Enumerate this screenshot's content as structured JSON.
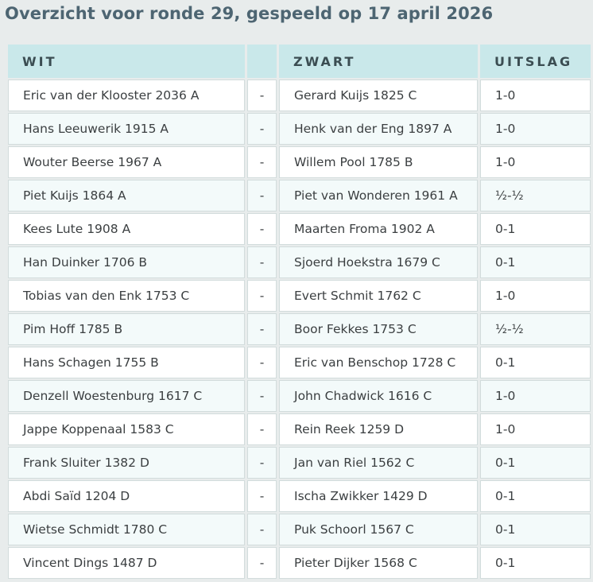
{
  "page": {
    "title": "Overzicht voor ronde 29, gespeeld op 17 april 2026"
  },
  "table": {
    "headers": {
      "white": "WIT",
      "separator": "",
      "black": "ZWART",
      "result": "UITSLAG"
    },
    "rows": [
      {
        "white": "Eric van der Klooster 2036 A",
        "sep": "-",
        "black": "Gerard Kuijs 1825 C",
        "result": "1-0"
      },
      {
        "white": "Hans Leeuwerik 1915 A",
        "sep": "-",
        "black": "Henk van der Eng 1897 A",
        "result": "1-0"
      },
      {
        "white": "Wouter Beerse 1967 A",
        "sep": "-",
        "black": "Willem Pool 1785 B",
        "result": "1-0"
      },
      {
        "white": "Piet Kuijs 1864 A",
        "sep": "-",
        "black": "Piet van Wonderen 1961 A",
        "result": "½-½"
      },
      {
        "white": "Kees Lute 1908 A",
        "sep": "-",
        "black": "Maarten Froma 1902 A",
        "result": "0-1"
      },
      {
        "white": "Han Duinker 1706 B",
        "sep": "-",
        "black": "Sjoerd Hoekstra 1679 C",
        "result": "0-1"
      },
      {
        "white": "Tobias van den Enk 1753 C",
        "sep": "-",
        "black": "Evert Schmit 1762 C",
        "result": "1-0"
      },
      {
        "white": "Pim Hoff 1785 B",
        "sep": "-",
        "black": "Boor Fekkes 1753 C",
        "result": "½-½"
      },
      {
        "white": "Hans Schagen 1755 B",
        "sep": "-",
        "black": "Eric van Benschop 1728 C",
        "result": "0-1"
      },
      {
        "white": "Denzell Woestenburg 1617 C",
        "sep": "-",
        "black": "John Chadwick 1616 C",
        "result": "1-0"
      },
      {
        "white": "Jappe Koppenaal 1583 C",
        "sep": "-",
        "black": "Rein Reek 1259 D",
        "result": "1-0"
      },
      {
        "white": "Frank Sluiter 1382 D",
        "sep": "-",
        "black": "Jan van Riel 1562 C",
        "result": "0-1"
      },
      {
        "white": "Abdi Saïd 1204 D",
        "sep": "-",
        "black": "Ischa Zwikker 1429 D",
        "result": "0-1"
      },
      {
        "white": "Wietse Schmidt 1780 C",
        "sep": "-",
        "black": "Puk Schoorl 1567 C",
        "result": "0-1"
      },
      {
        "white": "Vincent Dings 1487 D",
        "sep": "-",
        "black": "Pieter Dijker 1568 C",
        "result": "0-1"
      }
    ]
  }
}
